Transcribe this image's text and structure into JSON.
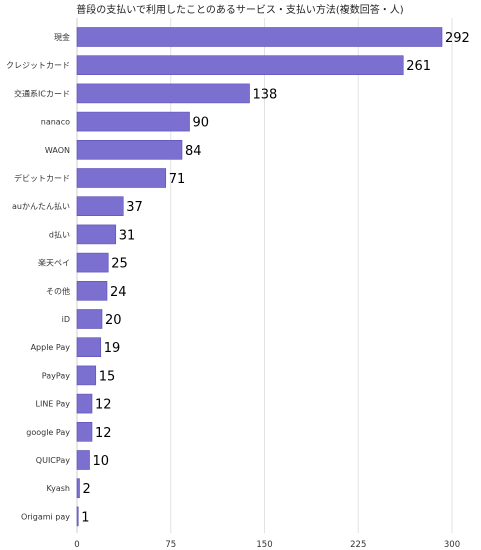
{
  "chart_data": {
    "type": "bar",
    "orientation": "horizontal",
    "title": "普段の支払いで利用したことのあるサービス・支払い方法(複数回答・人)",
    "categories": [
      "現金",
      "クレジットカード",
      "交通系ICカード",
      "nanaco",
      "WAON",
      "デビットカード",
      "auかんたん払い",
      "d払い",
      "楽天ペイ",
      "その他",
      "iD",
      "Apple Pay",
      "PayPay",
      "LINE Pay",
      "google Pay",
      "QUICPay",
      "Kyash",
      "Origami pay"
    ],
    "values": [
      292,
      261,
      138,
      90,
      84,
      71,
      37,
      31,
      25,
      24,
      20,
      19,
      15,
      12,
      12,
      10,
      2,
      1
    ],
    "xlim": [
      0,
      300
    ],
    "xticks": [
      "0",
      "75",
      "150",
      "225",
      "300"
    ],
    "grid": true,
    "legend": "none",
    "bar_color": "#7b6fd0",
    "bar_edge_color": "#5a4fb8"
  }
}
